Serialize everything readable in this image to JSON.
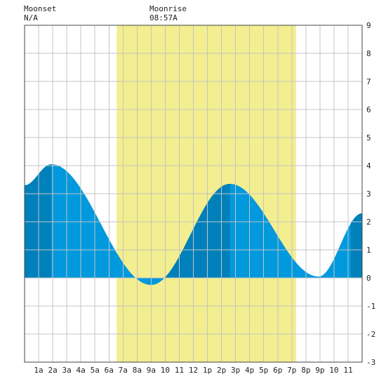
{
  "moon": {
    "moonset_label": "Moonset",
    "moonset_value": "N/A",
    "moonrise_label": "Moonrise",
    "moonrise_value": "08:57A"
  },
  "colors": {
    "daylight": "#f3ee8f",
    "tide_fill": "#0099dd",
    "tide_fill_dark": "#0080bb",
    "grid": "#c4c4c4",
    "border": "#444444"
  },
  "chart_data": {
    "type": "area",
    "title": "",
    "xlabel": "",
    "ylabel": "",
    "xlim": [
      0,
      24
    ],
    "ylim": [
      -3,
      9
    ],
    "grid": true,
    "x_tick_labels": [
      "1a",
      "2a",
      "3a",
      "4a",
      "5a",
      "6a",
      "7a",
      "8a",
      "9a",
      "10",
      "11",
      "12",
      "1p",
      "2p",
      "3p",
      "4p",
      "5p",
      "6p",
      "7p",
      "8p",
      "9p",
      "10",
      "11"
    ],
    "y_tick_labels": [
      "-3",
      "-2",
      "-1",
      "0",
      "1",
      "2",
      "3",
      "4",
      "5",
      "6",
      "7",
      "8",
      "9"
    ],
    "daylight_hours": [
      6.55,
      19.3
    ],
    "dark_bands_hours": [
      [
        0,
        1.9
      ],
      [
        9.9,
        14.6
      ],
      [
        23.2,
        24
      ]
    ],
    "series": [
      {
        "x": [
          0,
          1.9,
          9.0,
          14.6,
          20.9,
          24
        ],
        "y": [
          3.3,
          4.05,
          -0.25,
          3.35,
          0.05,
          2.3
        ]
      }
    ]
  }
}
